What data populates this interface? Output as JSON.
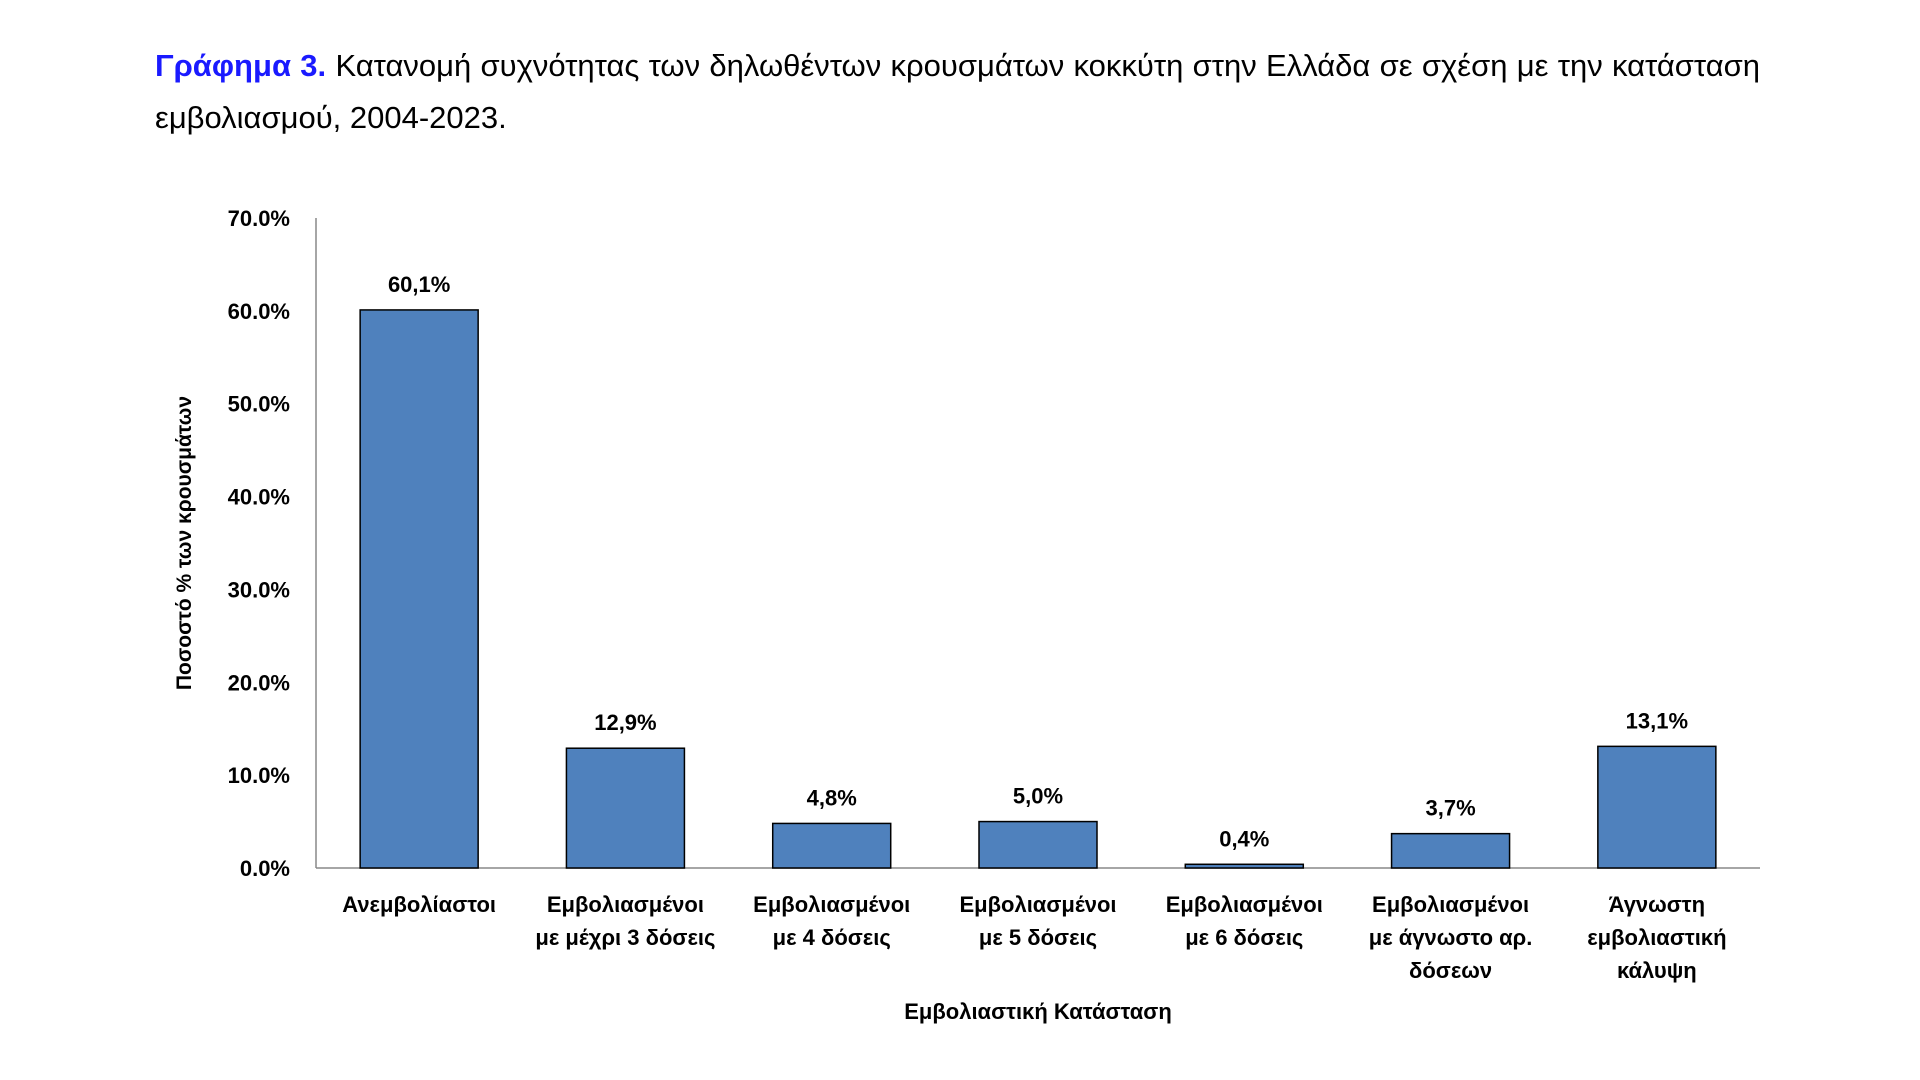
{
  "title": {
    "lead": "Γράφημα 3.",
    "text": " Κατανομή συχνότητας των δηλωθέντων κρουσμάτων κοκκύτη στην Ελλάδα σε σχέση με την κατάσταση εμβολιασμού, 2004-2023."
  },
  "chart_data": {
    "type": "bar",
    "title": "Γράφημα 3. Κατανομή συχνότητας των δηλωθέντων κρουσμάτων κοκκύτη στην Ελλάδα σε σχέση με την κατάσταση εμβολιασμού, 2004-2023.",
    "xlabel": "Εμβολιαστική Κατάσταση",
    "ylabel": "Ποσοστό % των κρουσμάτων",
    "ylim": [
      0,
      70
    ],
    "yticks": [
      "0.0%",
      "10.0%",
      "20.0%",
      "30.0%",
      "40.0%",
      "50.0%",
      "60.0%",
      "70.0%"
    ],
    "categories": [
      [
        "Ανεμβολίαστοι"
      ],
      [
        "Εμβολιασμένοι",
        "με μέχρι 3 δόσεις"
      ],
      [
        "Εμβολιασμένοι",
        "με 4 δόσεις"
      ],
      [
        "Εμβολιασμένοι",
        "με 5 δόσεις"
      ],
      [
        "Εμβολιασμένοι",
        "με 6 δόσεις"
      ],
      [
        "Εμβολιασμένοι",
        "με άγνωστο αρ.",
        "δόσεων"
      ],
      [
        "Άγνωστη",
        "εμβολιαστική",
        "κάλυψη"
      ]
    ],
    "values": [
      60.1,
      12.9,
      4.8,
      5.0,
      0.4,
      3.7,
      13.1
    ],
    "data_labels": [
      "60,1%",
      "12,9%",
      "4,8%",
      "5,0%",
      "0,4%",
      "3,7%",
      "13,1%"
    ],
    "bar_color": "#4f81bd",
    "grid": false,
    "legend": "none"
  }
}
